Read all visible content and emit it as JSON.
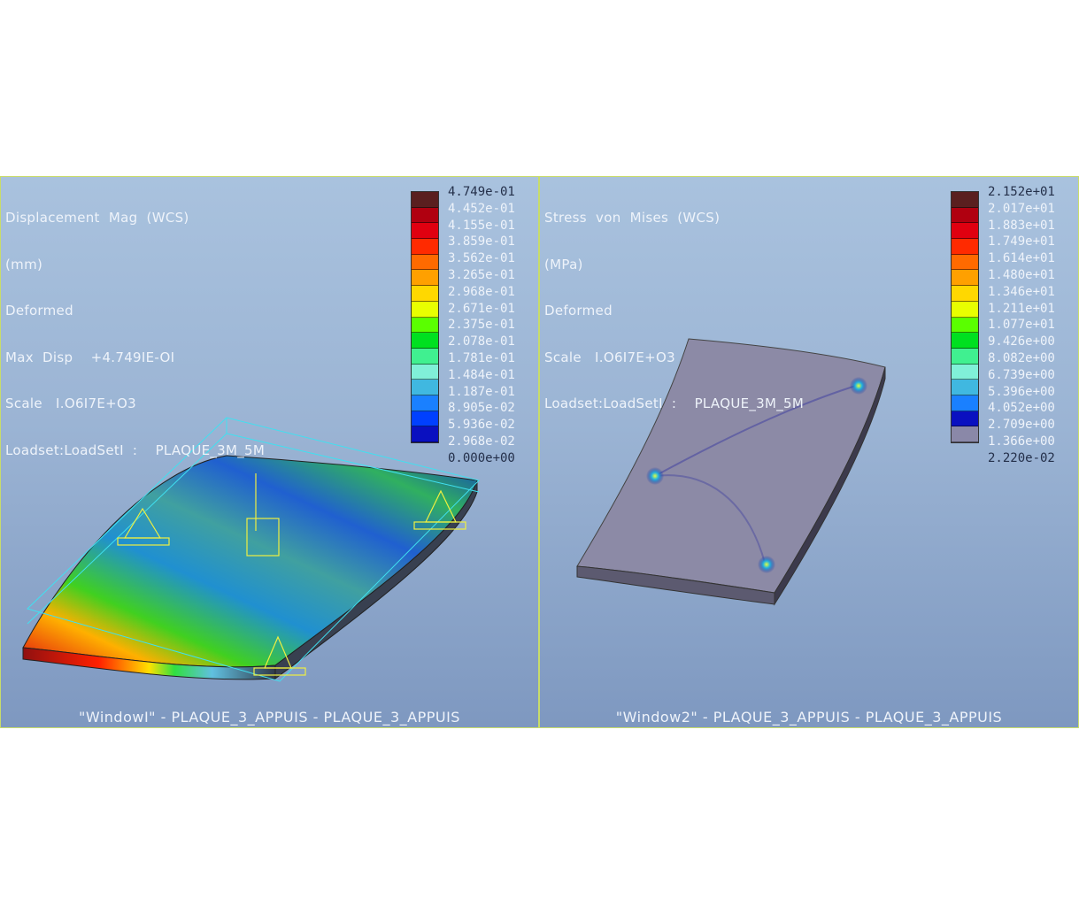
{
  "window1": {
    "info_lines": [
      "Displacement  Mag  (WCS)",
      "(mm)",
      "Deformed",
      "Max  Disp    +4.749IE-OI",
      "Scale   I.O6I7E+O3",
      "Loadset:LoadSetI  :    PLAQUE_3M_5M"
    ],
    "legend_values": [
      "4.749e-01",
      "4.452e-01",
      "4.155e-01",
      "3.859e-01",
      "3.562e-01",
      "3.265e-01",
      "2.968e-01",
      "2.671e-01",
      "2.375e-01",
      "2.078e-01",
      "1.781e-01",
      "1.484e-01",
      "1.187e-01",
      "8.905e-02",
      "5.936e-02",
      "2.968e-02",
      "0.000e+00"
    ],
    "legend_colors": [
      "#5a1f1f",
      "#b00010",
      "#e00010",
      "#ff2a00",
      "#ff6a00",
      "#ffa000",
      "#ffd800",
      "#e8ff00",
      "#5aff00",
      "#00e020",
      "#40f090",
      "#80f0d8",
      "#40b8e0",
      "#1a80ff",
      "#0040ff",
      "#0a10c0"
    ],
    "footer": "\"WindowI\"  -  PLAQUE_3_APPUIS  -  PLAQUE_3_APPUIS"
  },
  "window2": {
    "info_lines": [
      "Stress  von  Mises  (WCS)",
      "(MPa)",
      "Deformed",
      "Scale   I.O6I7E+O3",
      "Loadset:LoadSetI  :    PLAQUE_3M_5M"
    ],
    "legend_values": [
      "2.152e+01",
      "2.017e+01",
      "1.883e+01",
      "1.749e+01",
      "1.614e+01",
      "1.480e+01",
      "1.346e+01",
      "1.211e+01",
      "1.077e+01",
      "9.426e+00",
      "8.082e+00",
      "6.739e+00",
      "5.396e+00",
      "4.052e+00",
      "2.709e+00",
      "1.366e+00",
      "2.220e-02"
    ],
    "legend_colors": [
      "#5a1f1f",
      "#b00010",
      "#e00010",
      "#ff2a00",
      "#ff6a00",
      "#ffa000",
      "#ffd800",
      "#e8ff00",
      "#5aff00",
      "#00e020",
      "#40f090",
      "#80f0d8",
      "#40b8e0",
      "#1a80ff",
      "#0a10c0",
      "#8a88a8"
    ],
    "footer": "\"Window2\"  -  PLAQUE_3_APPUIS  -  PLAQUE_3_APPUIS"
  }
}
